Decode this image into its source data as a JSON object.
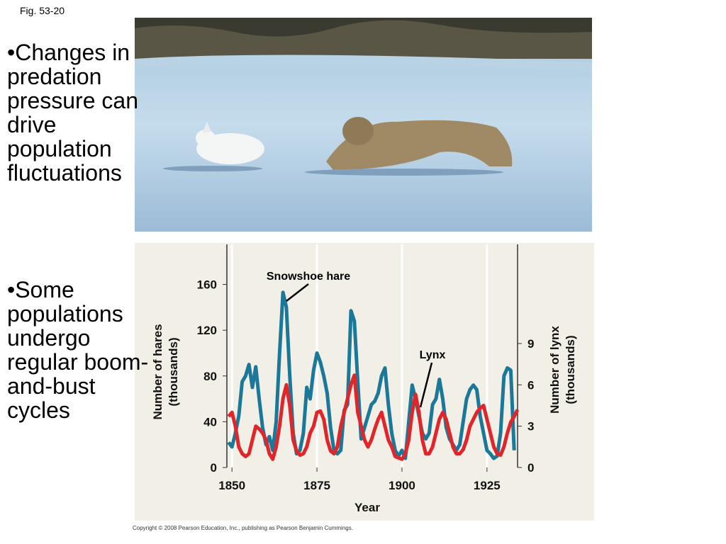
{
  "fig_label": "Fig. 53-20",
  "bullets": [
    "•Changes in predation pressure can drive population fluctuations",
    "•Some populations undergo regular boom-and-bust cycles"
  ],
  "copyright": "Copyright © 2008 Pearson Education, Inc., publishing as Pearson Benjamin Cummings.",
  "chart_data": {
    "type": "line",
    "xlabel": "Year",
    "ylabel": [
      "Number of hares",
      "(thousands)"
    ],
    "y2label": [
      "Number of lynx",
      "(thousands)"
    ],
    "annotations": [
      "Snowshoe hare",
      "Lynx"
    ],
    "xlim": [
      1848.5,
      1934
    ],
    "xticks": [
      1850,
      1875,
      1900,
      1925
    ],
    "ylim": [
      0,
      195
    ],
    "yticks": [
      0,
      40,
      80,
      120,
      160
    ],
    "y2lim": [
      0,
      16.2
    ],
    "y2ticks": [
      0,
      3,
      6,
      9
    ],
    "grid": true,
    "x": [
      1849,
      1850,
      1851,
      1852,
      1853,
      1854,
      1855,
      1856,
      1857,
      1858,
      1859,
      1860,
      1861,
      1862,
      1863,
      1864,
      1865,
      1866,
      1867,
      1868,
      1869,
      1870,
      1871,
      1872,
      1873,
      1874,
      1875,
      1876,
      1877,
      1878,
      1879,
      1880,
      1881,
      1882,
      1883,
      1884,
      1885,
      1886,
      1887,
      1888,
      1889,
      1890,
      1891,
      1892,
      1893,
      1894,
      1895,
      1896,
      1897,
      1898,
      1899,
      1900,
      1901,
      1902,
      1903,
      1904,
      1905,
      1906,
      1907,
      1908,
      1909,
      1910,
      1911,
      1912,
      1913,
      1914,
      1915,
      1916,
      1917,
      1918,
      1919,
      1920,
      1921,
      1922,
      1923,
      1924,
      1925,
      1926,
      1927,
      1928,
      1929,
      1930,
      1931,
      1932,
      1933,
      1934
    ],
    "series": [
      {
        "color": "#1b7899",
        "values": [
          22,
          18,
          30,
          45,
          75,
          80,
          90,
          70,
          88,
          60,
          35,
          20,
          27,
          15,
          40,
          100,
          153,
          140,
          80,
          30,
          12,
          15,
          30,
          70,
          60,
          85,
          100,
          92,
          80,
          65,
          35,
          15,
          12,
          15,
          50,
          55,
          137,
          128,
          75,
          25,
          35,
          45,
          55,
          58,
          65,
          80,
          87,
          55,
          30,
          15,
          10,
          15,
          8,
          40,
          72,
          60,
          45,
          30,
          25,
          30,
          55,
          60,
          77,
          60,
          35,
          25,
          20,
          15,
          20,
          40,
          60,
          68,
          72,
          68,
          45,
          30,
          15,
          12,
          8,
          10,
          30,
          80,
          87,
          85,
          15,
          null
        ]
      },
      {
        "color": "#e0262b",
        "axis": "y2",
        "values": [
          3.7,
          4,
          3,
          1.5,
          1,
          0.8,
          1,
          2,
          3,
          2.8,
          2.5,
          2,
          1,
          0.6,
          1.5,
          3,
          5,
          6,
          4.5,
          2,
          1.2,
          0.9,
          1,
          1.5,
          2.5,
          3,
          4,
          4.1,
          3.5,
          2,
          1.2,
          1,
          1.5,
          3,
          4,
          5,
          6,
          6.7,
          4,
          3,
          2,
          1.5,
          2,
          2.8,
          3.5,
          4,
          3,
          2,
          1.5,
          0.8,
          0.7,
          0.6,
          1,
          2,
          4,
          5.3,
          4,
          2,
          1,
          1,
          1.5,
          2.5,
          3.5,
          4,
          3.5,
          2.5,
          1.5,
          1,
          1,
          1.3,
          2,
          3,
          3.5,
          4,
          4.3,
          4.5,
          3.5,
          2.5,
          1.5,
          1,
          0.9,
          1.5,
          2.5,
          3.3,
          3.7,
          4.2
        ]
      }
    ]
  }
}
